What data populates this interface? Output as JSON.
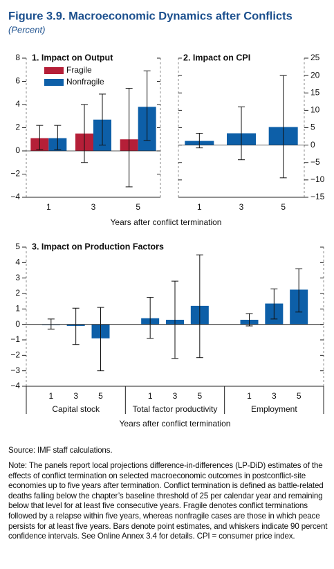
{
  "header": {
    "title": "Figure 3.9. Macroeconomic Dynamics after Conflicts",
    "subtitle": "(Percent)"
  },
  "chart_data": [
    {
      "type": "bar",
      "title": "1. Impact on Output",
      "xlabel": "Years after conflict termination",
      "categories": [
        "1",
        "3",
        "5"
      ],
      "series": [
        {
          "name": "Fragile",
          "color": "#b51f38",
          "values": [
            1.1,
            1.5,
            1.0
          ],
          "ci_low": [
            0.1,
            -1.0,
            -3.1
          ],
          "ci_high": [
            2.2,
            4.0,
            5.4
          ]
        },
        {
          "name": "Nonfragile",
          "color": "#0d5fa8",
          "values": [
            1.1,
            2.7,
            3.8
          ],
          "ci_low": [
            0.1,
            0.5,
            0.9
          ],
          "ci_high": [
            2.2,
            4.9,
            6.9
          ]
        }
      ],
      "ylim": [
        -4,
        8
      ],
      "yticks": [
        {
          "value": -4,
          "label": "−4"
        },
        {
          "value": -2,
          "label": "−2"
        },
        0,
        2,
        4,
        6,
        8
      ],
      "legend": "upper left"
    },
    {
      "type": "bar",
      "title": "2. Impact on CPI",
      "categories": [
        "1",
        "3",
        "5"
      ],
      "series": [
        {
          "color": "#0d5fa8",
          "values": [
            1.2,
            3.4,
            5.2
          ],
          "ci_low": [
            -0.8,
            -4.2,
            -9.4
          ],
          "ci_high": [
            3.4,
            11,
            20
          ]
        }
      ],
      "ylim": [
        -15,
        25
      ],
      "yticks": [
        {
          "value": -15,
          "label": "−15"
        },
        {
          "value": -10,
          "label": "−10"
        },
        {
          "value": -5,
          "label": "−5"
        },
        0,
        5,
        10,
        15,
        20,
        25
      ]
    },
    {
      "type": "bar",
      "title": "3. Impact on Production Factors",
      "xlabel": "Years after conflict termination",
      "groups": [
        "Capital stock",
        "Total factor productivity",
        "Employment"
      ],
      "categories": [
        "1",
        "3",
        "5",
        "1",
        "3",
        "5",
        "1",
        "3",
        "5"
      ],
      "series": [
        {
          "color": "#0d5fa8",
          "values": [
            0,
            -0.1,
            -0.9,
            0.4,
            0.3,
            1.2,
            0.3,
            1.35,
            2.25
          ],
          "ci_low": [
            -0.3,
            -1.3,
            -3.0,
            -0.9,
            -2.2,
            -2.15,
            -0.1,
            0.35,
            0.8
          ],
          "ci_high": [
            0.35,
            1.05,
            1.1,
            1.75,
            2.8,
            4.5,
            0.7,
            2.3,
            3.6
          ]
        }
      ],
      "ylim": [
        -4,
        5
      ],
      "yticks": [
        {
          "value": -4,
          "label": "−4"
        },
        {
          "value": -3,
          "label": "−3"
        },
        {
          "value": -2,
          "label": "−2"
        },
        {
          "value": -1,
          "label": "−1"
        },
        0,
        1,
        2,
        3,
        4,
        5
      ]
    }
  ],
  "footer": {
    "source": "Source: IMF staff calculations.",
    "note": "Note: The panels report local projections difference-in-differences (LP-DiD) estimates of the effects of conflict termination on selected macroeconomic outcomes in postconflict-site economies up to five years after termination. Conflict termination is defined as battle-related deaths falling below the chapter’s baseline threshold of 25 per calendar year and remaining below that level for at least five consecutive years. Fragile denotes conflict terminations followed by a relapse within five years, whereas nonfragile cases are those in which peace persists for at least five years. Bars denote point estimates, and whiskers indicate 90 percent confidence intervals. See Online Annex 3.4 for details. CPI = consumer price index."
  }
}
